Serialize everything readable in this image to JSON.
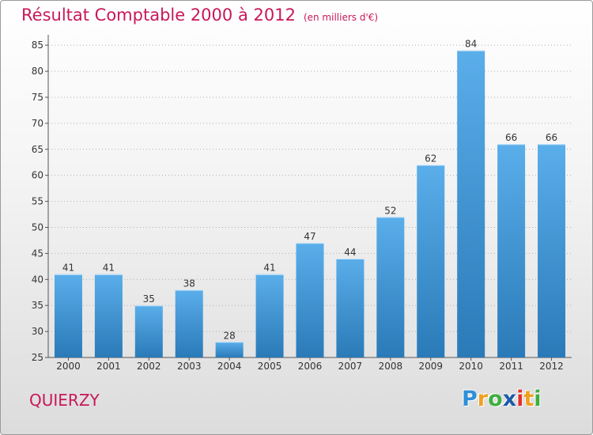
{
  "header": {
    "title": "Résultat Comptable 2000 à 2012",
    "unit_note": "(en milliers d'€)"
  },
  "commune": "QUIERZY",
  "logo": {
    "text": "Proxiti",
    "letters": [
      "P",
      "r",
      "o",
      "x",
      "i",
      "t",
      "i"
    ],
    "colors": [
      "#2f8fd8",
      "#f0a020",
      "#3fae3f",
      "#1e5aa8",
      "#e0302f",
      "#f0a020",
      "#3fae3f"
    ]
  },
  "colors": {
    "title": "#c8185a",
    "bar_light": "#5aaeea",
    "bar_dark": "#2a7ab8",
    "grid": "#b0b0b0"
  },
  "chart_data": {
    "type": "bar",
    "title": "Résultat Comptable 2000 à 2012",
    "ylabel": "en milliers d'€",
    "xlabel": "",
    "categories": [
      "2000",
      "2001",
      "2002",
      "2003",
      "2004",
      "2005",
      "2006",
      "2007",
      "2008",
      "2009",
      "2010",
      "2011",
      "2012"
    ],
    "values": [
      41,
      41,
      35,
      38,
      28,
      41,
      47,
      44,
      52,
      62,
      84,
      66,
      66
    ],
    "ylim": [
      25,
      87
    ],
    "yticks": [
      25,
      30,
      35,
      40,
      45,
      50,
      55,
      60,
      65,
      70,
      75,
      80,
      85
    ],
    "grid": true
  }
}
